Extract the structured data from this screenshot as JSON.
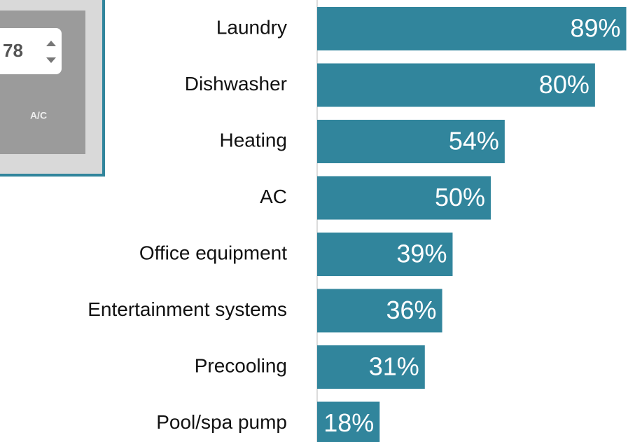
{
  "thumbnail": {
    "display": "78",
    "label": "A/C"
  },
  "chart_data": {
    "type": "bar",
    "orientation": "horizontal",
    "categories": [
      "Laundry",
      "Dishwasher",
      "Heating",
      "AC",
      "Office equipment",
      "Entertainment systems",
      "Precooling",
      "Pool/spa pump"
    ],
    "values": [
      89,
      80,
      54,
      50,
      39,
      36,
      31,
      18
    ],
    "value_labels": [
      "89%",
      "80%",
      "54%",
      "50%",
      "39%",
      "36%",
      "31%",
      "18%"
    ],
    "color": "#31859c",
    "xlim": [
      0,
      89.5
    ]
  }
}
